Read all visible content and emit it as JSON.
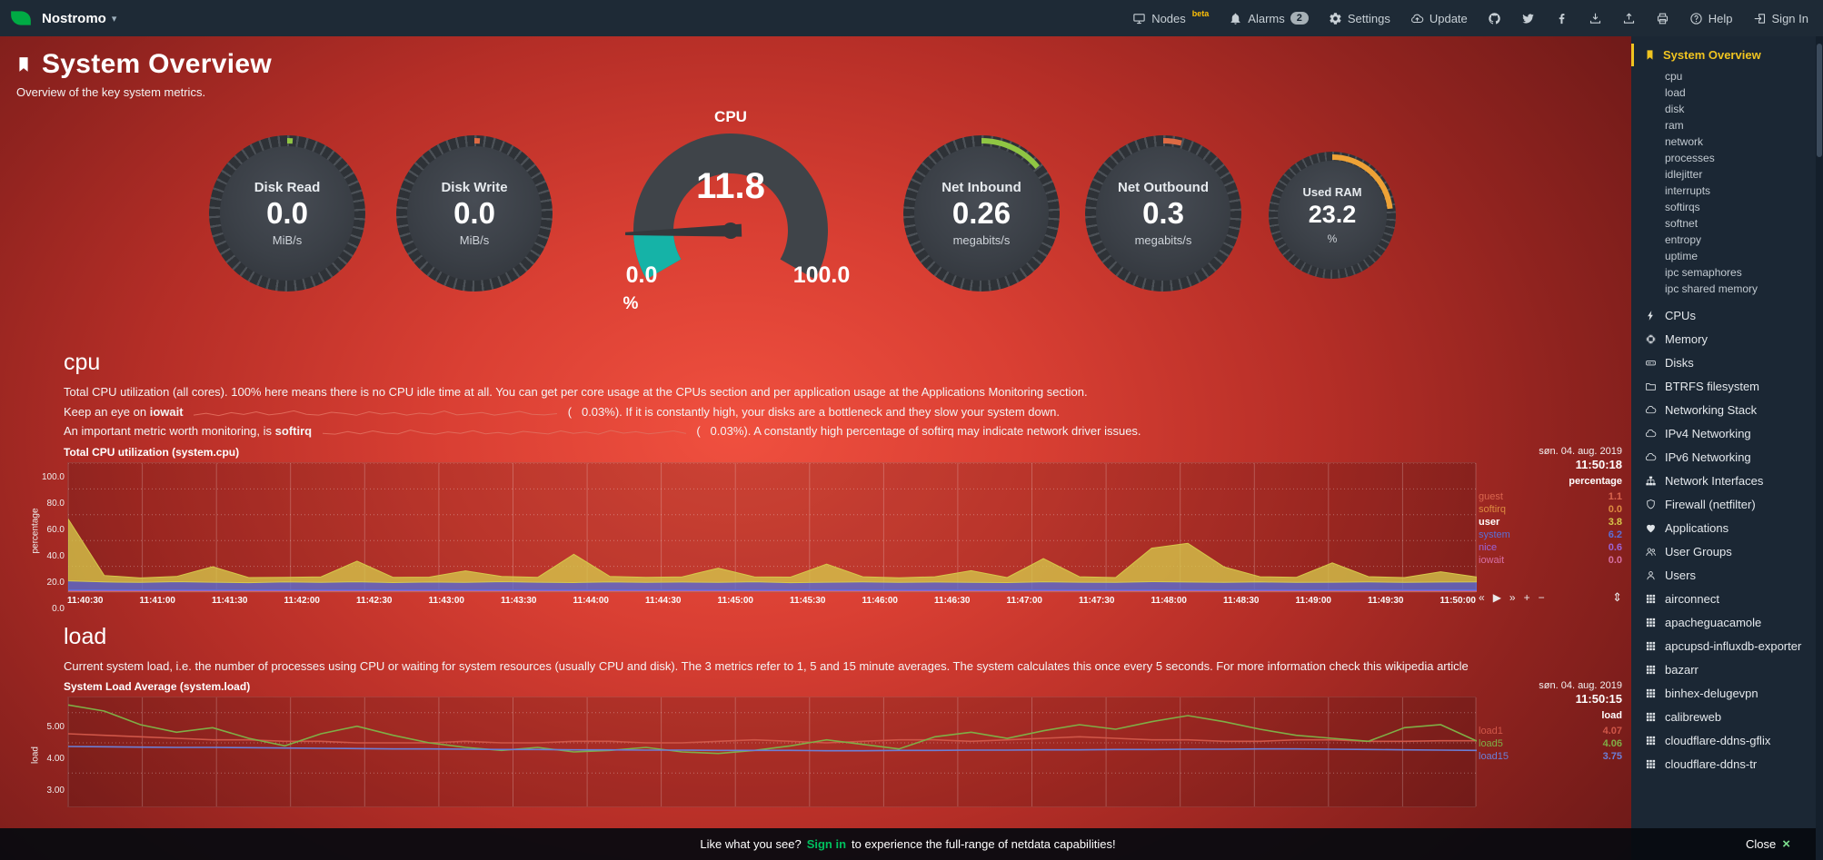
{
  "topbar": {
    "hostname": "Nostromo",
    "nodes_label": "Nodes",
    "nodes_beta": "beta",
    "alarms_label": "Alarms",
    "alarms_count": "2",
    "settings_label": "Settings",
    "update_label": "Update",
    "help_label": "Help",
    "signin_label": "Sign In"
  },
  "header": {
    "title": "System Overview",
    "subtitle": "Overview of the key system metrics."
  },
  "gauges": {
    "disk_read": {
      "title": "Disk Read",
      "value": "0.0",
      "unit": "MiB/s",
      "color": "#8fc543",
      "frac": 0.012
    },
    "disk_write": {
      "title": "Disk Write",
      "value": "0.0",
      "unit": "MiB/s",
      "color": "#dd6a43",
      "frac": 0.012
    },
    "cpu": {
      "title": "CPU",
      "value": "11.8",
      "min": "0.0",
      "max": "100.0",
      "unit": "%",
      "color": "#15b3a7",
      "frac": 0.118
    },
    "net_in": {
      "title": "Net Inbound",
      "value": "0.26",
      "unit": "megabits/s",
      "color": "#8fc543",
      "frac": 0.14
    },
    "net_out": {
      "title": "Net Outbound",
      "value": "0.3",
      "unit": "megabits/s",
      "color": "#dd6a43",
      "frac": 0.04
    },
    "ram": {
      "title": "Used RAM",
      "value": "23.2",
      "unit": "%",
      "color": "#eea236",
      "frac": 0.232
    }
  },
  "cpu_section": {
    "heading": "cpu",
    "desc1": "Total CPU utilization (all cores). 100% here means there is no CPU idle time at all. You can get per core usage at the CPUs section and per application usage at the Applications Monitoring section.",
    "line2_pre": "Keep an eye on",
    "line2_bold": "iowait",
    "line2_post": "(   0.03%). If it is constantly high, your disks are a bottleneck and they slow your system down.",
    "line3_pre": "An important metric worth monitoring, is",
    "line3_bold": "softirq",
    "line3_post": "(   0.03%). A constantly high percentage of softirq may indicate network driver issues."
  },
  "load_section": {
    "heading": "load",
    "desc": "Current system load, i.e. the number of processes using CPU or waiting for system resources (usually CPU and disk). The 3 metrics refer to 1, 5 and 15 minute averages. The system calculates this once every 5 seconds. For more information check this wikipedia article"
  },
  "chart_data": [
    {
      "id": "cpu",
      "type": "stacked",
      "title": "Total CPU utilization (system.cpu)",
      "units": "percentage",
      "date": "søn. 04. aug. 2019",
      "time": "11:50:18",
      "ylim": [
        0,
        100
      ],
      "y_grid": [
        20,
        40,
        60,
        80,
        100
      ],
      "y_labels": [
        "100.0",
        "80.0",
        "60.0",
        "40.0",
        "20.0",
        "0.0"
      ],
      "x_labels": [
        "11:40:30",
        "11:41:00",
        "11:41:30",
        "11:42:00",
        "11:42:30",
        "11:43:00",
        "11:43:30",
        "11:44:00",
        "11:44:30",
        "11:45:00",
        "11:45:30",
        "11:46:00",
        "11:46:30",
        "11:47:00",
        "11:47:30",
        "11:48:00",
        "11:48:30",
        "11:49:00",
        "11:49:30",
        "11:50:00"
      ],
      "stack_order": [
        "guest",
        "nice",
        "system",
        "user"
      ],
      "series": [
        {
          "name": "guest",
          "color": "#d9654e",
          "last": "1.1",
          "values": [
            1.1,
            1.1,
            1.1,
            1.1,
            1.1,
            1.1,
            1.1,
            1.1,
            1.1,
            1.1,
            1.1,
            1.1,
            1.1,
            1.1,
            1.1,
            1.1,
            1.1,
            1.1,
            1.1,
            1.1,
            1.1,
            1.1,
            1.1,
            1.1,
            1.1,
            1.1,
            1.1,
            1.1,
            1.1,
            1.1,
            1.1,
            1.1,
            1.1,
            1.1,
            1.1,
            1.1,
            1.1,
            1.1,
            1.1,
            1.1
          ]
        },
        {
          "name": "softirq",
          "color": "#dd8b40",
          "last": "0.0",
          "values": [
            0,
            0,
            0,
            0,
            0,
            0,
            0,
            0,
            0,
            0,
            0,
            0,
            0,
            0,
            0,
            0,
            0,
            0,
            0,
            0,
            0,
            0,
            0,
            0,
            0,
            0,
            0,
            0,
            0,
            0,
            0,
            0,
            0,
            0,
            0,
            0,
            0,
            0,
            0,
            0
          ]
        },
        {
          "name": "user",
          "color": "#d6c84a",
          "last": "3.8",
          "name_color": "#ffffff",
          "values": [
            48,
            5,
            3.5,
            4,
            12,
            4,
            3.6,
            4.2,
            16,
            4,
            3.8,
            9,
            4.1,
            3.7,
            22,
            4.2,
            3.9,
            4,
            11,
            3.8,
            4.3,
            14,
            4,
            3.6,
            4.1,
            9,
            3.9,
            18,
            4.2,
            3.8,
            26,
            30,
            12,
            4,
            3.9,
            15,
            4.1,
            3.7,
            8,
            3.8
          ]
        },
        {
          "name": "system",
          "color": "#5b6fd6",
          "last": "6.2",
          "values": [
            7,
            6.2,
            5.8,
            6.4,
            6,
            5.6,
            6.2,
            5.9,
            6.3,
            5.7,
            6.1,
            5.8,
            6.4,
            6,
            5.7,
            6.2,
            5.8,
            6.1,
            5.9,
            6.3,
            5.6,
            6,
            6.2,
            5.8,
            6.1,
            5.9,
            5.7,
            6.3,
            6,
            5.8,
            6.4,
            6.1,
            5.9,
            6.2,
            5.8,
            6,
            6.2,
            5.9,
            6.1,
            6.2
          ]
        },
        {
          "name": "nice",
          "color": "#9a64d8",
          "last": "0.6",
          "values": [
            0.6,
            0.6,
            0.6,
            0.6,
            0.6,
            0.6,
            0.6,
            0.6,
            0.6,
            0.6,
            0.6,
            0.6,
            0.6,
            0.6,
            0.6,
            0.6,
            0.6,
            0.6,
            0.6,
            0.6,
            0.6,
            0.6,
            0.6,
            0.6,
            0.6,
            0.6,
            0.6,
            0.6,
            0.6,
            0.6,
            0.6,
            0.6,
            0.6,
            0.6,
            0.6,
            0.6,
            0.6,
            0.6,
            0.6,
            0.6
          ]
        },
        {
          "name": "iowait",
          "color": "#d76fa3",
          "last": "0.0",
          "values": [
            0,
            0,
            0,
            0,
            0,
            0,
            0,
            0,
            0,
            0,
            0,
            0,
            0,
            0,
            0,
            0,
            0,
            0,
            0,
            0,
            0,
            0,
            0,
            0,
            0,
            0,
            0,
            0,
            0,
            0,
            0,
            0,
            0,
            0,
            0,
            0,
            0,
            0,
            0,
            0
          ]
        }
      ]
    },
    {
      "id": "load",
      "type": "line",
      "title": "System Load Average (system.load)",
      "units": "load",
      "date": "søn. 04. aug. 2019",
      "time": "11:50:15",
      "ylim": [
        1.9,
        5.5
      ],
      "y_grid": [
        3,
        4,
        5
      ],
      "y_labels": [
        "5.00",
        "4.00",
        "3.00"
      ],
      "series": [
        {
          "name": "load1",
          "color": "#cf5648",
          "last": "4.07",
          "values": [
            4.3,
            4.25,
            4.2,
            4.15,
            4.1,
            4.1,
            4.05,
            4.05,
            4,
            4,
            4,
            4.05,
            4,
            4,
            4.05,
            4.05,
            4,
            4,
            4.05,
            4.1,
            4.05,
            4,
            4.05,
            4.1,
            4.1,
            4.05,
            4.1,
            4.15,
            4.2,
            4.15,
            4.1,
            4.1,
            4.05,
            4.05,
            4.1,
            4.1,
            4.05,
            4.05,
            4.07,
            4.07
          ]
        },
        {
          "name": "load5",
          "color": "#7fae46",
          "last": "4.06",
          "values": [
            5.25,
            5.05,
            4.6,
            4.35,
            4.5,
            4.15,
            3.9,
            4.3,
            4.55,
            4.25,
            4,
            3.85,
            3.75,
            3.85,
            3.7,
            3.75,
            3.85,
            3.7,
            3.65,
            3.75,
            3.9,
            4.1,
            3.95,
            3.8,
            4.2,
            4.35,
            4.15,
            4.4,
            4.6,
            4.45,
            4.7,
            4.9,
            4.7,
            4.45,
            4.25,
            4.15,
            4.05,
            4.5,
            4.6,
            4.06
          ]
        },
        {
          "name": "load15",
          "color": "#6b7fd7",
          "last": "3.75",
          "values": [
            3.88,
            3.87,
            3.86,
            3.85,
            3.85,
            3.84,
            3.83,
            3.82,
            3.81,
            3.8,
            3.8,
            3.79,
            3.78,
            3.78,
            3.77,
            3.77,
            3.76,
            3.76,
            3.75,
            3.75,
            3.75,
            3.74,
            3.74,
            3.75,
            3.75,
            3.76,
            3.76,
            3.77,
            3.77,
            3.78,
            3.78,
            3.79,
            3.79,
            3.8,
            3.8,
            3.79,
            3.78,
            3.77,
            3.76,
            3.75
          ]
        }
      ]
    },
    {
      "id": "iowait_spark",
      "type": "sparkline",
      "values": [
        0.1,
        0.32,
        0.05,
        0.4,
        0.18,
        0.5,
        0.12,
        0.3,
        0.62,
        0.2,
        0.1,
        0.45,
        0.3,
        0.08,
        0.5,
        0.22,
        0.4,
        0.1,
        0.33,
        0.2,
        0.6,
        0.12,
        0.25,
        0.42,
        0.1,
        0.3,
        0.55,
        0.2,
        0.12,
        0.28
      ]
    },
    {
      "id": "softirq_spark",
      "type": "sparkline",
      "values": [
        0.2,
        0.1,
        0.42,
        0.15,
        0.5,
        0.22,
        0.12,
        0.6,
        0.25,
        0.1,
        0.38,
        0.2,
        0.52,
        0.15,
        0.3,
        0.1,
        0.45,
        0.28,
        0.12,
        0.5,
        0.2,
        0.35,
        0.1,
        0.55,
        0.22,
        0.4,
        0.15,
        0.3,
        0.5,
        0.18
      ]
    }
  ],
  "sidebar": {
    "active_label": "System Overview",
    "active_icon": "bookmark",
    "submenu": [
      "cpu",
      "load",
      "disk",
      "ram",
      "network",
      "processes",
      "idlejitter",
      "interrupts",
      "softirqs",
      "softnet",
      "entropy",
      "uptime",
      "ipc semaphores",
      "ipc shared memory"
    ],
    "sections": [
      {
        "label": "CPUs",
        "icon": "bolt"
      },
      {
        "label": "Memory",
        "icon": "chip"
      },
      {
        "label": "Disks",
        "icon": "hdd"
      },
      {
        "label": "BTRFS filesystem",
        "icon": "folder"
      },
      {
        "label": "Networking Stack",
        "icon": "cloud"
      },
      {
        "label": "IPv4 Networking",
        "icon": "cloud"
      },
      {
        "label": "IPv6 Networking",
        "icon": "cloud"
      },
      {
        "label": "Network Interfaces",
        "icon": "sitemap"
      },
      {
        "label": "Firewall (netfilter)",
        "icon": "shield"
      },
      {
        "label": "Applications",
        "icon": "heart"
      },
      {
        "label": "User Groups",
        "icon": "users"
      },
      {
        "label": "Users",
        "icon": "user"
      },
      {
        "label": "airconnect",
        "icon": "grid"
      },
      {
        "label": "apacheguacamole",
        "icon": "grid"
      },
      {
        "label": "apcupsd-influxdb-exporter",
        "icon": "grid"
      },
      {
        "label": "bazarr",
        "icon": "grid"
      },
      {
        "label": "binhex-delugevpn",
        "icon": "grid"
      },
      {
        "label": "calibreweb",
        "icon": "grid"
      },
      {
        "label": "cloudflare-ddns-gflix",
        "icon": "grid"
      },
      {
        "label": "cloudflare-ddns-tr",
        "icon": "grid"
      }
    ]
  },
  "footer": {
    "pre": "Like what you see?",
    "signin": "Sign in",
    "post": "to experience the full-range of netdata capabilities!",
    "close": "Close"
  },
  "icons": {
    "caret_down": "▾",
    "pan_left": "«",
    "play": "▶",
    "pan_right": "»",
    "zoom_in": "+",
    "zoom_out": "−",
    "resize": "⇕",
    "close_x": "×"
  },
  "colors": {
    "accent_green": "#00c05e",
    "active_yellow": "#f0c420",
    "topbar_bg": "#1e2a36",
    "sidebar_bg": "#1b2734"
  }
}
